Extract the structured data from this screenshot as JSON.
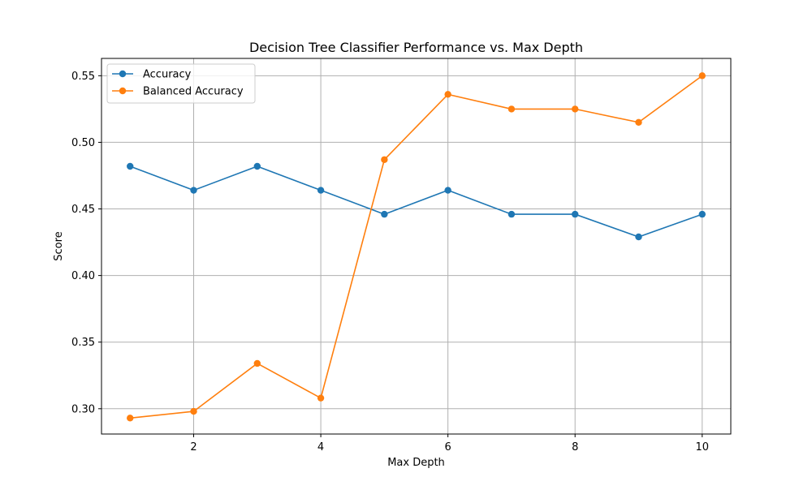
{
  "chart_data": {
    "type": "line",
    "title": "Decision Tree Classifier Performance vs. Max Depth",
    "xlabel": "Max Depth",
    "ylabel": "Score",
    "x": [
      1,
      2,
      3,
      4,
      5,
      6,
      7,
      8,
      9,
      10
    ],
    "xlim": [
      0.55,
      10.45
    ],
    "ylim": [
      0.281,
      0.563
    ],
    "xticks": [
      2,
      4,
      6,
      8,
      10
    ],
    "xtick_labels": [
      "2",
      "4",
      "6",
      "8",
      "10"
    ],
    "yticks": [
      0.3,
      0.35,
      0.4,
      0.45,
      0.5,
      0.55
    ],
    "ytick_labels": [
      "0.30",
      "0.35",
      "0.40",
      "0.45",
      "0.50",
      "0.55"
    ],
    "grid": true,
    "legend_position": "top-left",
    "series": [
      {
        "name": "Accuracy",
        "color": "#1f77b4",
        "marker": "circle",
        "values": [
          0.482,
          0.464,
          0.482,
          0.464,
          0.446,
          0.464,
          0.446,
          0.446,
          0.429,
          0.446
        ]
      },
      {
        "name": "Balanced Accuracy",
        "color": "#ff7f0e",
        "marker": "circle",
        "values": [
          0.293,
          0.298,
          0.334,
          0.308,
          0.487,
          0.536,
          0.525,
          0.525,
          0.515,
          0.55
        ]
      }
    ]
  }
}
